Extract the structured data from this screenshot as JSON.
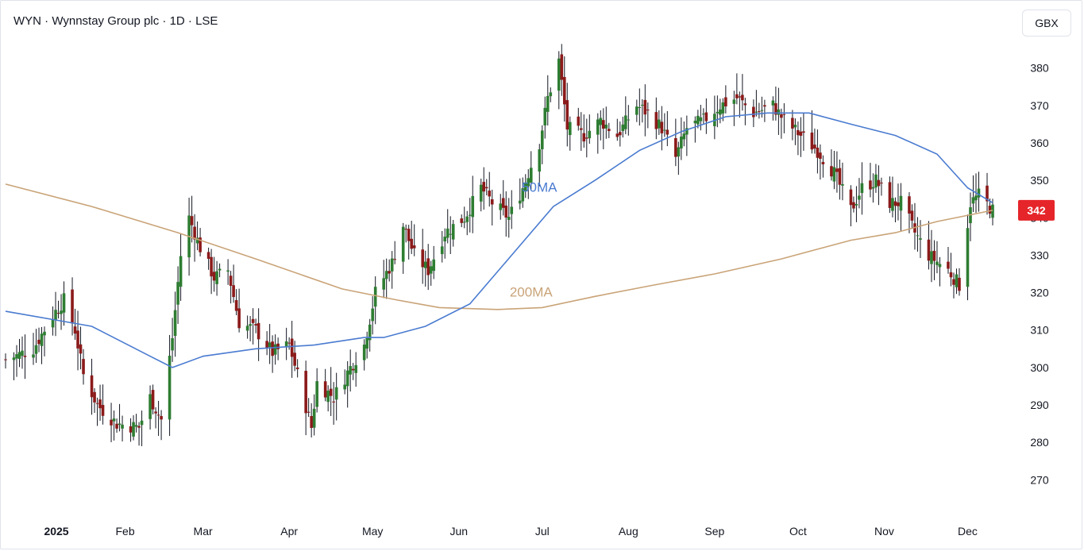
{
  "header": {
    "title": "WYN · Wynnstay Group plc · 1D · LSE",
    "currency_button": "GBX"
  },
  "colors": {
    "up": "#2e7d32",
    "down": "#8b1a1a",
    "wick": "#131722",
    "ma50": "#4a7bd0",
    "ma200": "#c9a377",
    "last_price_badge": "#e5252a"
  },
  "chart_data": {
    "type": "candlestick",
    "symbol": "WYN",
    "name": "Wynnstay Group plc",
    "interval": "1D",
    "exchange": "LSE",
    "currency": "GBX",
    "ylim": [
      262,
      388
    ],
    "y_ticks": [
      270,
      280,
      290,
      300,
      310,
      320,
      330,
      340,
      350,
      360,
      370,
      380
    ],
    "x_labels": [
      "2025",
      "Feb",
      "Mar",
      "Apr",
      "May",
      "Jun",
      "Jul",
      "Aug",
      "Sep",
      "Oct",
      "Nov",
      "Dec"
    ],
    "x_label_dates": [
      "2025-01-01",
      "2025-02-01",
      "2025-03-01",
      "2025-04-01",
      "2025-05-01",
      "2025-06-01",
      "2025-07-01",
      "2025-08-01",
      "2025-09-01",
      "2025-10-01",
      "2025-11-01",
      "2025-12-01"
    ],
    "date_range": [
      "2024-12-20",
      "2025-12-10"
    ],
    "close_anchors": [
      [
        "2024-12-20",
        302
      ],
      [
        "2024-12-30",
        305
      ],
      [
        "2025-01-06",
        314
      ],
      [
        "2025-01-10",
        318
      ],
      [
        "2025-01-14",
        310
      ],
      [
        "2025-01-17",
        298
      ],
      [
        "2025-01-22",
        290
      ],
      [
        "2025-01-29",
        285
      ],
      [
        "2025-02-06",
        284
      ],
      [
        "2025-02-10",
        292
      ],
      [
        "2025-02-14",
        286
      ],
      [
        "2025-02-18",
        308
      ],
      [
        "2025-02-21",
        330
      ],
      [
        "2025-02-24",
        340
      ],
      [
        "2025-02-28",
        332
      ],
      [
        "2025-03-05",
        324
      ],
      [
        "2025-03-10",
        326
      ],
      [
        "2025-03-14",
        312
      ],
      [
        "2025-03-20",
        310
      ],
      [
        "2025-03-26",
        304
      ],
      [
        "2025-04-01",
        306
      ],
      [
        "2025-04-04",
        298
      ],
      [
        "2025-04-09",
        284
      ],
      [
        "2025-04-11",
        296
      ],
      [
        "2025-04-17",
        292
      ],
      [
        "2025-04-23",
        300
      ],
      [
        "2025-04-28",
        306
      ],
      [
        "2025-05-02",
        320
      ],
      [
        "2025-05-08",
        328
      ],
      [
        "2025-05-12",
        338
      ],
      [
        "2025-05-16",
        330
      ],
      [
        "2025-05-21",
        326
      ],
      [
        "2025-05-27",
        336
      ],
      [
        "2025-06-03",
        340
      ],
      [
        "2025-06-09",
        348
      ],
      [
        "2025-06-13",
        344
      ],
      [
        "2025-06-19",
        340
      ],
      [
        "2025-06-24",
        348
      ],
      [
        "2025-06-30",
        360
      ],
      [
        "2025-07-03",
        372
      ],
      [
        "2025-07-07",
        382
      ],
      [
        "2025-07-10",
        364
      ],
      [
        "2025-07-16",
        362
      ],
      [
        "2025-07-22",
        366
      ],
      [
        "2025-07-28",
        362
      ],
      [
        "2025-08-04",
        370
      ],
      [
        "2025-08-08",
        368
      ],
      [
        "2025-08-13",
        364
      ],
      [
        "2025-08-18",
        356
      ],
      [
        "2025-08-22",
        364
      ],
      [
        "2025-08-28",
        366
      ],
      [
        "2025-09-03",
        370
      ],
      [
        "2025-09-09",
        372
      ],
      [
        "2025-09-15",
        368
      ],
      [
        "2025-09-22",
        370
      ],
      [
        "2025-09-26",
        366
      ],
      [
        "2025-10-02",
        362
      ],
      [
        "2025-10-08",
        358
      ],
      [
        "2025-10-14",
        352
      ],
      [
        "2025-10-20",
        342
      ],
      [
        "2025-10-24",
        348
      ],
      [
        "2025-10-29",
        350
      ],
      [
        "2025-11-03",
        344
      ],
      [
        "2025-11-07",
        344
      ],
      [
        "2025-11-12",
        336
      ],
      [
        "2025-11-17",
        330
      ],
      [
        "2025-11-24",
        326
      ],
      [
        "2025-11-28",
        322
      ],
      [
        "2025-12-02",
        344
      ],
      [
        "2025-12-05",
        346
      ],
      [
        "2025-12-10",
        342
      ]
    ],
    "ma50": [
      [
        "2024-12-20",
        315
      ],
      [
        "2025-01-20",
        311
      ],
      [
        "2025-02-10",
        303
      ],
      [
        "2025-02-18",
        300
      ],
      [
        "2025-03-01",
        303
      ],
      [
        "2025-03-20",
        305
      ],
      [
        "2025-04-10",
        306
      ],
      [
        "2025-04-28",
        308
      ],
      [
        "2025-05-05",
        308
      ],
      [
        "2025-05-20",
        311
      ],
      [
        "2025-06-05",
        317
      ],
      [
        "2025-06-20",
        330
      ],
      [
        "2025-07-05",
        343
      ],
      [
        "2025-07-20",
        350
      ],
      [
        "2025-08-05",
        358
      ],
      [
        "2025-08-20",
        363
      ],
      [
        "2025-09-05",
        367
      ],
      [
        "2025-09-20",
        368
      ],
      [
        "2025-10-05",
        368
      ],
      [
        "2025-10-20",
        365
      ],
      [
        "2025-11-05",
        362
      ],
      [
        "2025-11-20",
        357
      ],
      [
        "2025-12-01",
        348
      ],
      [
        "2025-12-10",
        344
      ]
    ],
    "ma200": [
      [
        "2024-12-20",
        349
      ],
      [
        "2025-01-20",
        343
      ],
      [
        "2025-02-20",
        336
      ],
      [
        "2025-03-20",
        329
      ],
      [
        "2025-04-20",
        321
      ],
      [
        "2025-05-10",
        318
      ],
      [
        "2025-05-25",
        316
      ],
      [
        "2025-06-15",
        315.5
      ],
      [
        "2025-07-01",
        316
      ],
      [
        "2025-07-20",
        319
      ],
      [
        "2025-08-10",
        322
      ],
      [
        "2025-09-01",
        325
      ],
      [
        "2025-09-25",
        329
      ],
      [
        "2025-10-20",
        334
      ],
      [
        "2025-11-05",
        336
      ],
      [
        "2025-11-20",
        339
      ],
      [
        "2025-12-10",
        342
      ]
    ],
    "series_labels": [
      {
        "text": "50MA",
        "date": "2025-06-30",
        "value": 347
      },
      {
        "text": "200MA",
        "date": "2025-06-27",
        "value": 319
      }
    ],
    "last_price": 342
  }
}
